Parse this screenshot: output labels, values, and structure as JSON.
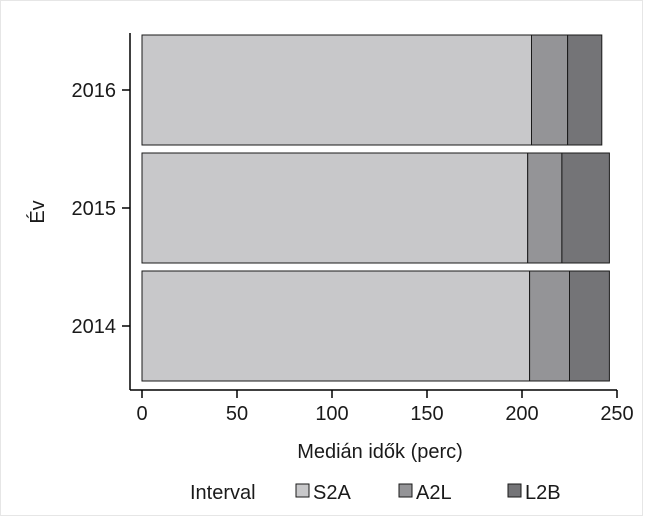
{
  "chart_data": {
    "type": "bar",
    "orientation": "horizontal",
    "stacked": true,
    "categories": [
      "2016",
      "2015",
      "2014"
    ],
    "series": [
      {
        "name": "S2A",
        "values": [
          205,
          203,
          204
        ],
        "color": "#c8c8ca"
      },
      {
        "name": "A2L",
        "values": [
          19,
          18,
          21
        ],
        "color": "#949497"
      },
      {
        "name": "L2B",
        "values": [
          18,
          25,
          21
        ],
        "color": "#747477"
      }
    ],
    "xlabel": "Medián idők (perc)",
    "ylabel": "Év",
    "xlim": [
      0,
      250
    ],
    "xticks": [
      0,
      50,
      100,
      150,
      200,
      250
    ],
    "grid": false,
    "legend": {
      "title": "Interval",
      "position": "bottom"
    }
  }
}
